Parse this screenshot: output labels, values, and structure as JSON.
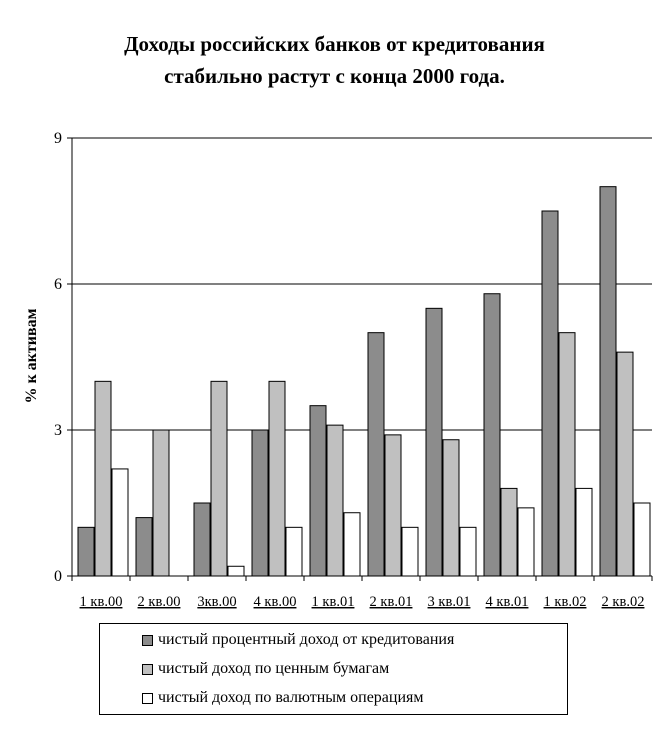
{
  "title_lines": [
    "Доходы российских банков от кредитования",
    "стабильно растут с конца 2000 года."
  ],
  "colors": {
    "series_1": "#8c8c8c",
    "series_2": "#c0c0c0",
    "series_3": "#ffffff",
    "gridline": "#000000"
  },
  "chart_data": {
    "type": "bar",
    "title": "Доходы российских банков от кредитования стабильно растут с конца 2000 года.",
    "xlabel": "",
    "ylabel": "% к активам",
    "ylim": [
      0,
      9
    ],
    "yticks": [
      "0",
      "3",
      "6",
      "9"
    ],
    "ytick_values": [
      0,
      3,
      6,
      9
    ],
    "grid": true,
    "legend_position": "bottom",
    "categories": [
      "1 кв.00",
      "2 кв.00",
      "3кв.00",
      "4 кв.00",
      "1 кв.01",
      "2 кв.01",
      "3 кв.01",
      "4 кв.01",
      "1 кв.02",
      "2 кв.02"
    ],
    "series": [
      {
        "name": "чистый процентный доход от кредитования",
        "values": [
          1.0,
          1.2,
          1.5,
          3.0,
          3.5,
          5.0,
          5.5,
          5.8,
          7.5,
          8.0
        ]
      },
      {
        "name": "чистый доход по ценным бумагам",
        "values": [
          4.0,
          3.0,
          4.0,
          4.0,
          3.1,
          2.9,
          2.8,
          1.8,
          5.0,
          4.6
        ]
      },
      {
        "name": "чистый доход по валютным операциям",
        "values": [
          2.2,
          0,
          0.2,
          1.0,
          1.3,
          1.0,
          1.0,
          1.4,
          1.8,
          1.5
        ]
      }
    ]
  }
}
